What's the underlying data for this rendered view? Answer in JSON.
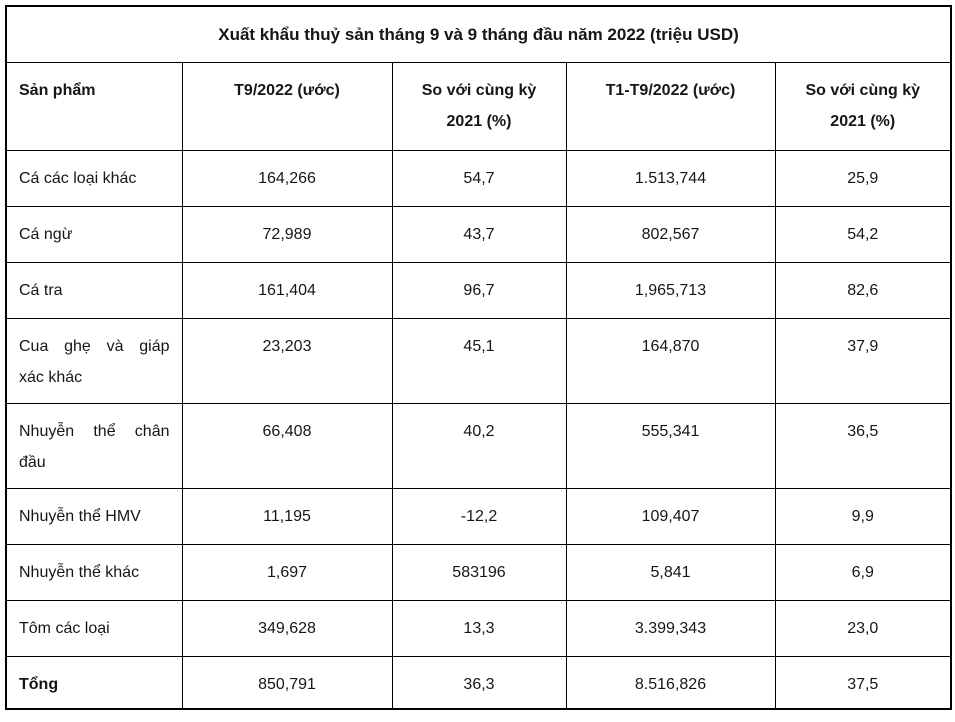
{
  "colors": {
    "background": "#ffffff",
    "border": "#000000",
    "text": "#161616"
  },
  "table": {
    "title": "Xuất khẩu thuỷ sản tháng 9 và 9 tháng đầu năm 2022 (triệu USD)",
    "headers": {
      "product": "Sản phẩm",
      "t9": "T9/2022 (ước)",
      "yoy_t9": {
        "line1": "So với cùng kỳ",
        "line2": "2021 (%)"
      },
      "t1t9": "T1-T9/2022 (ước)",
      "yoy_t1t9": {
        "line1": "So với cùng kỳ",
        "line2": "2021 (%)"
      }
    },
    "rows": [
      {
        "label_lines": [
          "Cá các loại khác"
        ],
        "values": [
          "164,266",
          "54,7",
          "1.513,744",
          "25,9"
        ]
      },
      {
        "label_lines": [
          "Cá ngừ"
        ],
        "values": [
          "72,989",
          "43,7",
          "802,567",
          "54,2"
        ]
      },
      {
        "label_lines": [
          "Cá tra"
        ],
        "values": [
          "161,404",
          "96,7",
          "1,965,713",
          "82,6"
        ]
      },
      {
        "label_lines": [
          "Cua ghẹ và giáp",
          "xác khác"
        ],
        "values": [
          "23,203",
          "45,1",
          "164,870",
          "37,9"
        ]
      },
      {
        "label_lines": [
          "Nhuyễn thể chân",
          "đầu"
        ],
        "values": [
          "66,408",
          "40,2",
          "555,341",
          "36,5"
        ]
      },
      {
        "label_lines": [
          "Nhuyễn thể HMV"
        ],
        "values": [
          "11,195",
          "-12,2",
          "109,407",
          "9,9"
        ]
      },
      {
        "label_lines": [
          "Nhuyễn thể khác"
        ],
        "values": [
          "1,697",
          "583196",
          "5,841",
          "6,9"
        ]
      },
      {
        "label_lines": [
          "Tôm các loại"
        ],
        "values": [
          "349,628",
          "13,3",
          "3.399,343",
          "23,0"
        ]
      },
      {
        "label_lines": [
          "Tổng"
        ],
        "values": [
          "850,791",
          "36,3",
          "8.516,826",
          "37,5"
        ]
      }
    ]
  },
  "chart_data": {
    "type": "table",
    "title": "Xuất khẩu thuỷ sản tháng 9 và 9 tháng đầu năm 2022 (triệu USD)",
    "columns": [
      "Sản phẩm",
      "T9/2022 (ước)",
      "So với cùng kỳ 2021 (%)",
      "T1-T9/2022 (ước)",
      "So với cùng kỳ 2021 (%)"
    ],
    "rows": [
      [
        "Cá các loại khác",
        "164,266",
        "54,7",
        "1.513,744",
        "25,9"
      ],
      [
        "Cá ngừ",
        "72,989",
        "43,7",
        "802,567",
        "54,2"
      ],
      [
        "Cá tra",
        "161,404",
        "96,7",
        "1,965,713",
        "82,6"
      ],
      [
        "Cua ghẹ và giáp xác khác",
        "23,203",
        "45,1",
        "164,870",
        "37,9"
      ],
      [
        "Nhuyễn thể chân đầu",
        "66,408",
        "40,2",
        "555,341",
        "36,5"
      ],
      [
        "Nhuyễn thể HMV",
        "11,195",
        "-12,2",
        "109,407",
        "9,9"
      ],
      [
        "Nhuyễn thể khác",
        "1,697",
        "583196",
        "5,841",
        "6,9"
      ],
      [
        "Tôm các loại",
        "349,628",
        "13,3",
        "3.399,343",
        "23,0"
      ],
      [
        "Tổng",
        "850,791",
        "36,3",
        "8.516,826",
        "37,5"
      ]
    ]
  }
}
